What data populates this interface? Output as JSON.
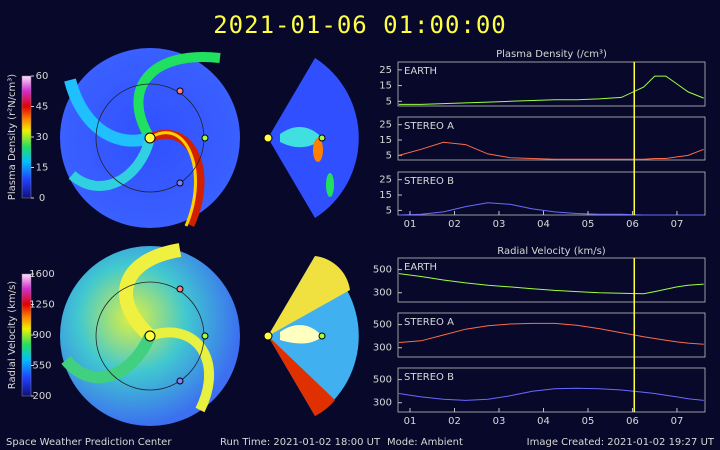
{
  "header": {
    "title": "2021-01-06  01:00:00"
  },
  "colorbars": [
    {
      "label": "Plasma Density (r²N/cm³)",
      "lim": [
        0,
        60
      ],
      "ticks": [
        0,
        15,
        30,
        45,
        60
      ]
    },
    {
      "label": "Radial Velocity (km/s)",
      "lim": [
        200,
        1600
      ],
      "ticks": [
        200,
        550,
        900,
        1250,
        1600
      ]
    }
  ],
  "chart_data": [
    {
      "type": "line",
      "title": "Plasma Density (/cm³)",
      "x": [
        0.75,
        1.25,
        1.75,
        2.25,
        2.75,
        3.25,
        3.75,
        4.25,
        4.75,
        5.25,
        5.75,
        6.25,
        6.5,
        6.75,
        7.0,
        7.25,
        7.6
      ],
      "xlim": [
        0.73,
        7.63
      ],
      "xticks": [
        {
          "value": 1,
          "label": "01"
        },
        {
          "value": 2,
          "label": "02"
        },
        {
          "value": 3,
          "label": "03"
        },
        {
          "value": 4,
          "label": "04"
        },
        {
          "value": 5,
          "label": "05"
        },
        {
          "value": 6,
          "label": "06"
        },
        {
          "value": 7,
          "label": "07"
        }
      ],
      "now_x": 6.04,
      "panels": [
        {
          "name": "EARTH",
          "color": "#a0ff40",
          "ylim": [
            2,
            30
          ],
          "yticks": [
            5,
            15,
            25
          ],
          "values": [
            3,
            3,
            3.5,
            4,
            4.5,
            5,
            5.5,
            6,
            6,
            6.5,
            7.5,
            14,
            21,
            21,
            16,
            11,
            7
          ]
        },
        {
          "name": "STEREO A",
          "color": "#ff6a4a",
          "ylim": [
            2,
            30
          ],
          "yticks": [
            5,
            15,
            25
          ],
          "values": [
            5,
            9,
            13.5,
            12,
            6,
            3.5,
            3,
            2.5,
            2.5,
            2.5,
            2.5,
            2.5,
            3,
            3,
            4,
            5,
            9
          ]
        },
        {
          "name": "STEREO B",
          "color": "#6a6aff",
          "ylim": [
            2,
            30
          ],
          "yticks": [
            5,
            15,
            25
          ],
          "values": [
            2,
            2.5,
            4,
            7.5,
            10,
            9,
            6,
            4,
            3,
            2.5,
            2.5,
            2,
            2,
            2,
            2,
            2,
            2
          ]
        }
      ]
    },
    {
      "type": "line",
      "title": "Radial Velocity (km/s)",
      "x": [
        0.75,
        1.25,
        1.75,
        2.25,
        2.75,
        3.25,
        3.75,
        4.25,
        4.75,
        5.25,
        5.75,
        6.25,
        6.5,
        6.75,
        7.0,
        7.25,
        7.6
      ],
      "xlim": [
        0.73,
        7.63
      ],
      "xticks": [
        {
          "value": 1,
          "label": "01"
        },
        {
          "value": 2,
          "label": "02"
        },
        {
          "value": 3,
          "label": "03"
        },
        {
          "value": 4,
          "label": "04"
        },
        {
          "value": 5,
          "label": "05"
        },
        {
          "value": 6,
          "label": "06"
        },
        {
          "value": 7,
          "label": "07"
        }
      ],
      "now_x": 6.04,
      "panels": [
        {
          "name": "EARTH",
          "color": "#a0ff40",
          "ylim": [
            220,
            600
          ],
          "yticks": [
            300,
            500
          ],
          "values": [
            465,
            440,
            410,
            385,
            365,
            350,
            335,
            320,
            310,
            300,
            295,
            292,
            310,
            330,
            350,
            365,
            375
          ]
        },
        {
          "name": "STEREO A",
          "color": "#ff6a4a",
          "ylim": [
            220,
            600
          ],
          "yticks": [
            300,
            500
          ],
          "values": [
            345,
            360,
            410,
            460,
            490,
            505,
            510,
            510,
            495,
            465,
            430,
            395,
            380,
            365,
            350,
            340,
            330
          ]
        },
        {
          "name": "STEREO B",
          "color": "#6a6aff",
          "ylim": [
            220,
            600
          ],
          "yticks": [
            300,
            500
          ],
          "values": [
            380,
            350,
            330,
            320,
            330,
            360,
            400,
            420,
            425,
            420,
            410,
            390,
            380,
            365,
            350,
            335,
            320
          ]
        }
      ]
    }
  ],
  "footer": {
    "org": "Space Weather Prediction Center",
    "run_time": "Run Time: 2021-01-02 18:00 UT",
    "mode": "Mode: Ambient",
    "created": "Image Created: 2021-01-02 19:27 UT"
  }
}
